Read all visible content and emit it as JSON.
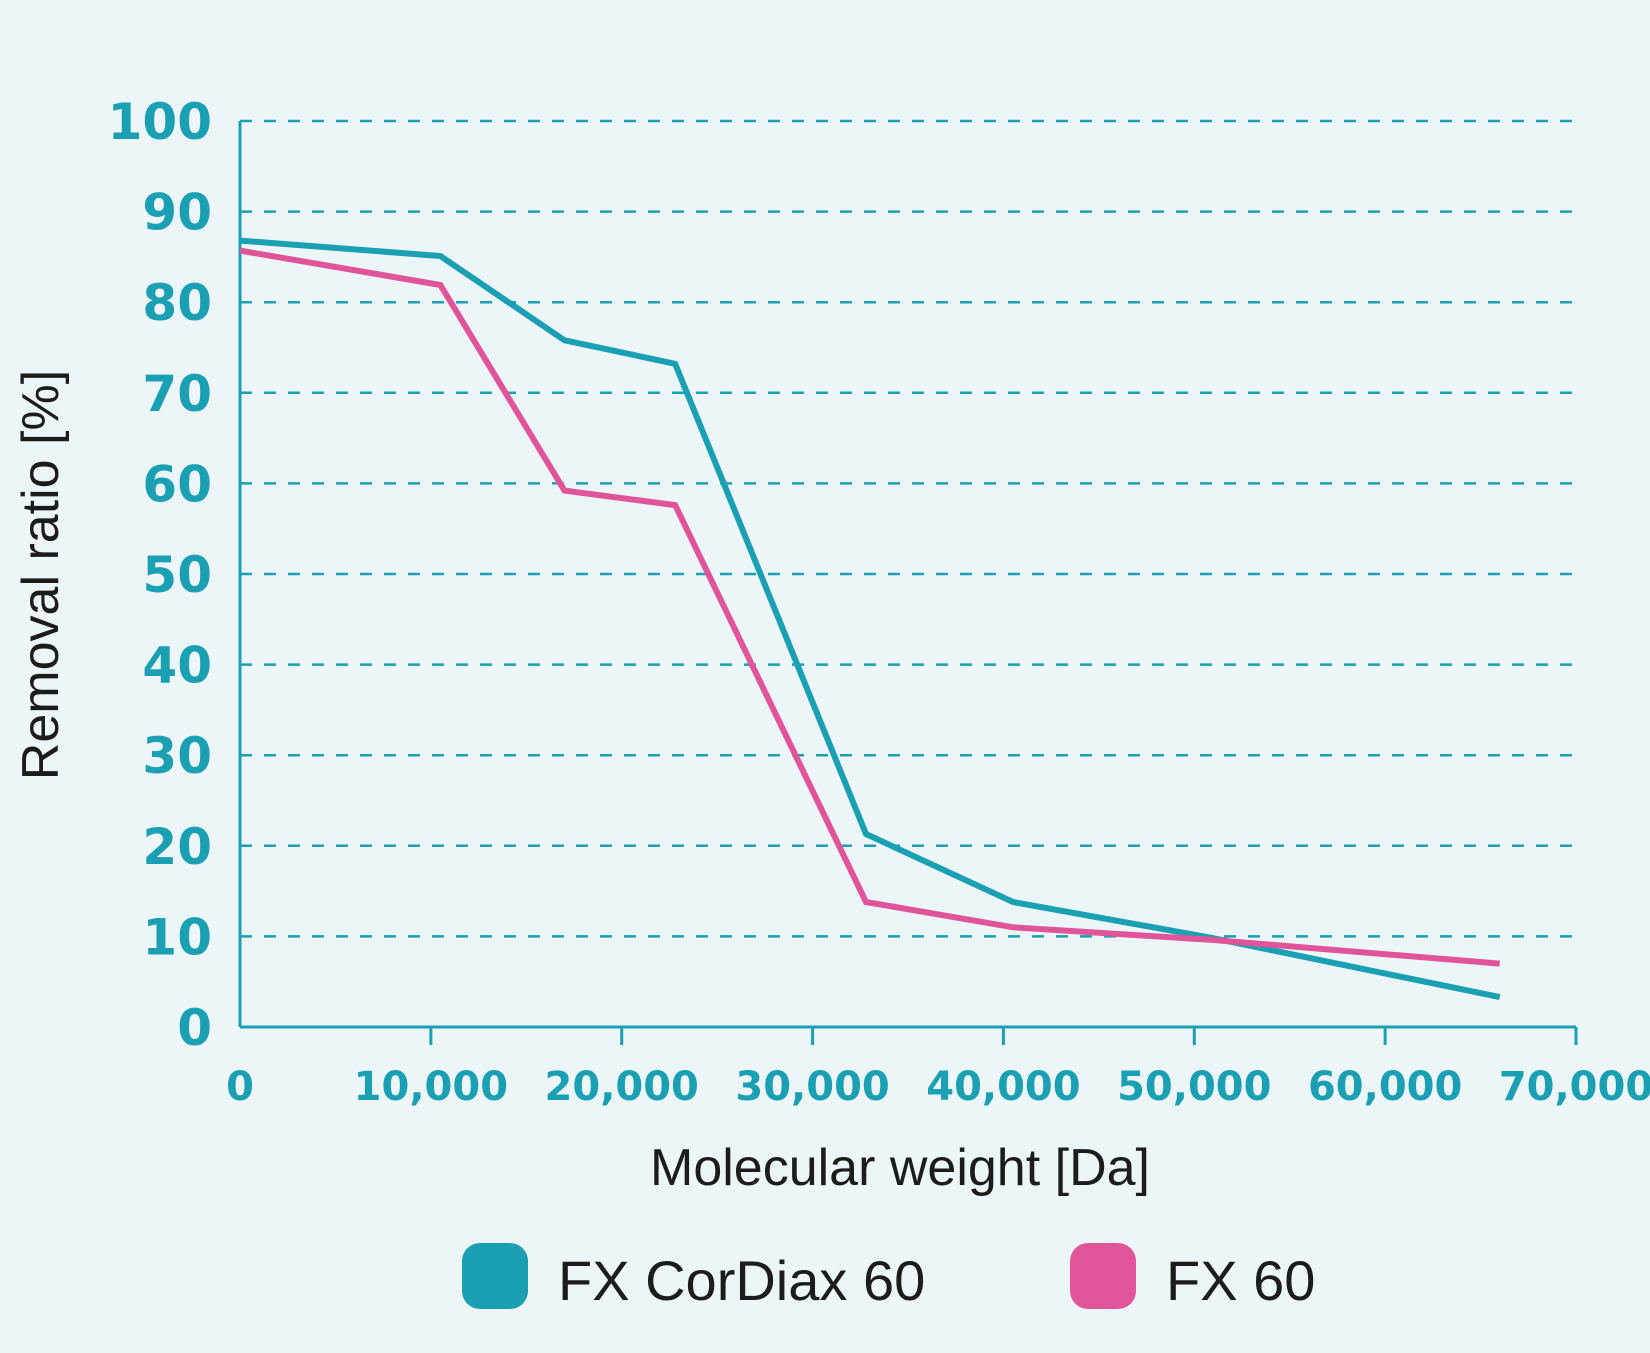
{
  "chart_data": {
    "type": "line",
    "xlabel": "Molecular weight [Da]",
    "ylabel": "Removal ratio [%]",
    "xlim": [
      0,
      70000
    ],
    "ylim": [
      0,
      100
    ],
    "x_ticks": [
      0,
      10000,
      20000,
      30000,
      40000,
      50000,
      60000,
      70000
    ],
    "x_tick_labels": [
      "0",
      "10,000",
      "20,000",
      "30,000",
      "40,000",
      "50,000",
      "60,000",
      "70,000"
    ],
    "y_ticks": [
      0,
      10,
      20,
      30,
      40,
      50,
      60,
      70,
      80,
      90,
      100
    ],
    "y_tick_labels": [
      "0",
      "10",
      "20",
      "30",
      "40",
      "50",
      "60",
      "70",
      "80",
      "90",
      "100"
    ],
    "grid": "horizontal-dashed",
    "legend_position": "bottom",
    "series": [
      {
        "name": "FX CorDiax 60",
        "color": "#1a9fb3",
        "x": [
          0,
          10500,
          17000,
          22800,
          32800,
          40500,
          51000,
          66000
        ],
        "y": [
          86.8,
          85.1,
          75.8,
          73.2,
          21.3,
          13.8,
          9.8,
          3.3
        ]
      },
      {
        "name": "FX 60",
        "color": "#e0559a",
        "x": [
          0,
          10500,
          17000,
          22800,
          32800,
          40500,
          51000,
          66000
        ],
        "y": [
          85.7,
          81.9,
          59.2,
          57.6,
          13.8,
          11.0,
          9.6,
          7.0
        ]
      }
    ]
  }
}
